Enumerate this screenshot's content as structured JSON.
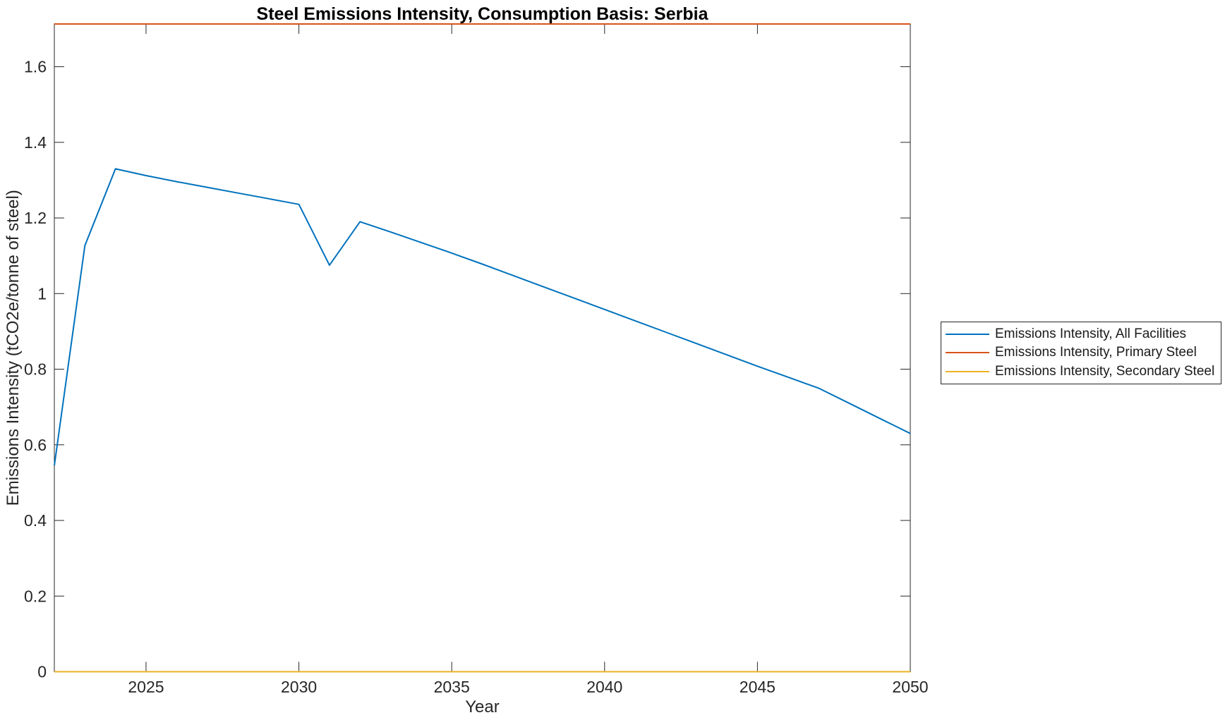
{
  "figure": {
    "background": "#ffffff"
  },
  "chart_data": {
    "type": "line",
    "title": "Steel Emissions Intensity, Consumption Basis: Serbia",
    "xlabel": "Year",
    "ylabel": "Emissions Intensity (tCO2e/tonne of steel)",
    "xlim": [
      2022,
      2050
    ],
    "ylim": [
      0,
      1.713
    ],
    "grid": false,
    "box": true,
    "tick_direction": "in",
    "axis_color": "#262626",
    "legend_position": "right-outside",
    "x_ticks": [
      2025,
      2030,
      2035,
      2040,
      2045,
      2050
    ],
    "x_tick_labels": [
      "2025",
      "2030",
      "2035",
      "2040",
      "2045",
      "2050"
    ],
    "y_ticks": [
      0,
      0.2,
      0.4,
      0.6,
      0.8,
      1,
      1.2,
      1.4,
      1.6
    ],
    "y_tick_labels": [
      "0",
      "0.2",
      "0.4",
      "0.6",
      "0.8",
      "1",
      "1.2",
      "1.4",
      "1.6"
    ],
    "x": [
      2022,
      2023,
      2024,
      2025,
      2026,
      2027,
      2028,
      2029,
      2030,
      2031,
      2032,
      2033,
      2034,
      2035,
      2036,
      2037,
      2038,
      2039,
      2040,
      2041,
      2042,
      2043,
      2044,
      2045,
      2046,
      2047,
      2048,
      2049,
      2050
    ],
    "series": [
      {
        "name": "Emissions Intensity, All Facilities",
        "color": "#0072BD",
        "values": [
          0.545,
          1.127,
          1.33,
          1.312,
          1.296,
          1.281,
          1.266,
          1.251,
          1.236,
          1.075,
          1.19,
          1.163,
          1.135,
          1.107,
          1.078,
          1.048,
          1.018,
          0.988,
          0.958,
          0.928,
          0.898,
          0.868,
          0.838,
          0.808,
          0.779,
          0.75,
          0.71,
          0.67,
          0.63
        ]
      },
      {
        "name": "Emissions Intensity, Primary Steel",
        "color": "#D95319",
        "values": [
          1.713,
          1.713,
          1.713,
          1.713,
          1.713,
          1.713,
          1.713,
          1.713,
          1.713,
          1.713,
          1.713,
          1.713,
          1.713,
          1.713,
          1.713,
          1.713,
          1.713,
          1.713,
          1.713,
          1.713,
          1.713,
          1.713,
          1.713,
          1.713,
          1.713,
          1.713,
          1.713,
          1.713,
          1.713
        ]
      },
      {
        "name": "Emissions Intensity, Secondary Steel",
        "color": "#EDB120",
        "values": [
          0,
          0,
          0,
          0,
          0,
          0,
          0,
          0,
          0,
          0,
          0,
          0,
          0,
          0,
          0,
          0,
          0,
          0,
          0,
          0,
          0,
          0,
          0,
          0,
          0,
          0,
          0,
          0,
          0
        ]
      }
    ]
  }
}
